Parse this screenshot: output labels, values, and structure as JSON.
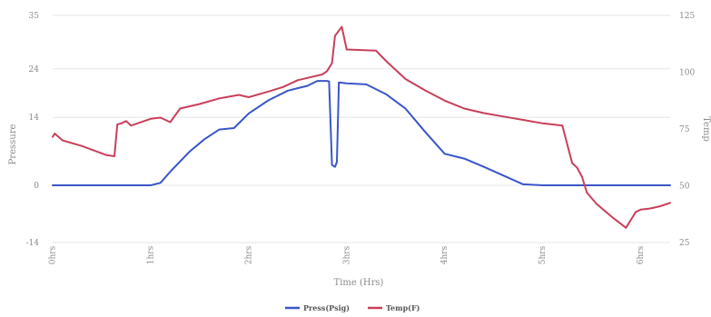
{
  "chart_data": {
    "type": "line",
    "xlabel": "Time (Hrs)",
    "ylabel": "Pressure",
    "y2label": "Temp",
    "xlim": [
      0,
      6.3
    ],
    "ylim": [
      -14,
      35
    ],
    "y2lim": [
      25,
      125
    ],
    "x_ticks": [
      {
        "x": 0,
        "label": "0hrs"
      },
      {
        "x": 1,
        "label": "1hrs"
      },
      {
        "x": 2,
        "label": "2hrs"
      },
      {
        "x": 3,
        "label": "3hrs"
      },
      {
        "x": 4,
        "label": "4hrs"
      },
      {
        "x": 5,
        "label": "5hrs"
      },
      {
        "x": 6,
        "label": "6hrs"
      }
    ],
    "y_ticks": [
      {
        "v": 35,
        "label": "35"
      },
      {
        "v": 24,
        "label": "24"
      },
      {
        "v": 14,
        "label": "14"
      },
      {
        "v": 0,
        "label": "0"
      },
      {
        "v": -14,
        "label": "-14"
      }
    ],
    "y2_ticks": [
      {
        "v": 125,
        "label": "125"
      },
      {
        "v": 100,
        "label": "100"
      },
      {
        "v": 75,
        "label": "75"
      },
      {
        "v": 50,
        "label": "50"
      },
      {
        "v": 25,
        "label": "25"
      }
    ],
    "grid": true,
    "legend_position": "bottom",
    "series": [
      {
        "name": "Press(Psig)",
        "axis": "left",
        "color": "#3a56c8",
        "x": [
          0,
          0.5,
          1.0,
          1.1,
          1.2,
          1.4,
          1.55,
          1.7,
          1.85,
          2.0,
          2.2,
          2.4,
          2.5,
          2.6,
          2.7,
          2.8,
          2.82,
          2.85,
          2.88,
          2.9,
          2.92,
          3.0,
          3.2,
          3.4,
          3.6,
          3.8,
          4.0,
          4.2,
          4.4,
          4.6,
          4.8,
          5.0,
          5.5,
          6.0,
          6.3
        ],
        "values": [
          0,
          0,
          0,
          0.5,
          2.8,
          7.0,
          9.5,
          11.5,
          11.8,
          14.8,
          17.5,
          19.5,
          20.0,
          20.5,
          21.5,
          21.5,
          21.4,
          4.2,
          3.8,
          4.8,
          21.2,
          21.0,
          20.8,
          18.8,
          15.8,
          11.0,
          6.5,
          5.5,
          3.8,
          2.0,
          0.2,
          0,
          0,
          0,
          0
        ]
      },
      {
        "name": "Temp(F)",
        "axis": "right",
        "color": "#c8405a",
        "x": [
          0,
          0.02,
          0.1,
          0.3,
          0.55,
          0.63,
          0.66,
          0.7,
          0.75,
          0.8,
          1.0,
          1.1,
          1.2,
          1.3,
          1.5,
          1.7,
          1.9,
          2.0,
          2.2,
          2.35,
          2.5,
          2.6,
          2.75,
          2.8,
          2.85,
          2.88,
          2.95,
          3.0,
          3.3,
          3.4,
          3.6,
          3.8,
          4.0,
          4.2,
          4.4,
          4.6,
          4.8,
          5.0,
          5.2,
          5.3,
          5.35,
          5.4,
          5.45,
          5.55,
          5.7,
          5.85,
          5.9,
          5.95,
          6.0,
          6.1,
          6.2,
          6.3
        ],
        "values": [
          71.5,
          73,
          70,
          67.5,
          63.5,
          63,
          77,
          77.5,
          78.5,
          76.5,
          79.5,
          80,
          78,
          84,
          86,
          88.5,
          90,
          89,
          91.5,
          93.5,
          96.5,
          97.5,
          99,
          100.5,
          104,
          116,
          120,
          110,
          109.5,
          105,
          97,
          92,
          87.5,
          84,
          82,
          80.5,
          79,
          77.5,
          76.5,
          60,
          58,
          54,
          47,
          42,
          36.5,
          31.5,
          35,
          38.5,
          39.5,
          40,
          41,
          42.5
        ]
      }
    ]
  }
}
